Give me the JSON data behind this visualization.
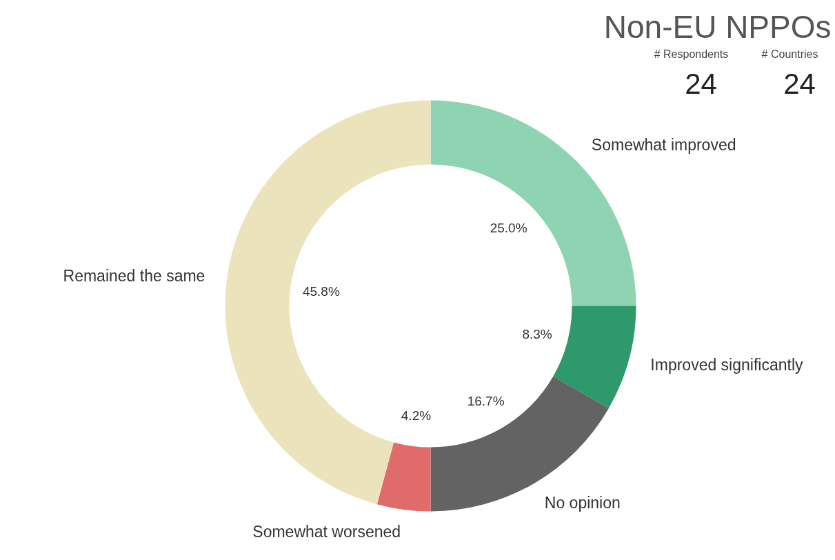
{
  "chart_data": {
    "type": "donut",
    "title": "Non-EU NPPOs",
    "annotations": [
      "# Respondents",
      "24",
      "# Countries",
      "24"
    ],
    "categories": [
      "Somewhat improved",
      "Improved significantly",
      "No opinion",
      "Somewhat worsened",
      "Remained the same"
    ],
    "values": [
      25.0,
      8.3,
      16.7,
      4.2,
      45.8
    ],
    "value_labels": [
      "25.0%",
      "8.3%",
      "16.7%",
      "4.2%",
      "45.8%"
    ],
    "colors": [
      "#8fd4b2",
      "#2e9a6c",
      "#636363",
      "#e06b6b",
      "#ebe3bc"
    ]
  }
}
